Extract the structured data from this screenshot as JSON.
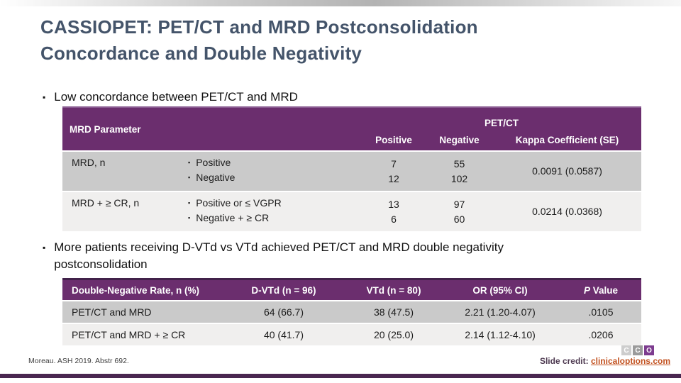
{
  "title": {
    "line1": "CASSIOPET: PET/CT and MRD Postconsolidation",
    "line2": "Concordance and Double Negativity"
  },
  "bullets": {
    "low_concordance": "Low concordance between PET/CT and MRD",
    "double_negativity": "More patients receiving D-VTd vs VTd achieved PET/CT and MRD double negativity postconsolidation"
  },
  "table1": {
    "header": {
      "col_param": "MRD Parameter",
      "group": "PET/CT",
      "sub_positive": "Positive",
      "sub_negative": "Negative",
      "sub_kappa": "Kappa Coefficient (SE)"
    },
    "rows": [
      {
        "param": "MRD, n",
        "sub_items": [
          "Positive",
          "Negative"
        ],
        "positive": [
          "7",
          "12"
        ],
        "negative": [
          "55",
          "102"
        ],
        "kappa": "0.0091 (0.0587)"
      },
      {
        "param": "MRD + ≥ CR, n",
        "sub_items": [
          "Positive or ≤ VGPR",
          "Negative + ≥ CR"
        ],
        "positive": [
          "13",
          "6"
        ],
        "negative": [
          "97",
          "60"
        ],
        "kappa": "0.0214 (0.0368)"
      }
    ]
  },
  "table2": {
    "headers": [
      "Double-Negative Rate, n (%)",
      "D-VTd (n = 96)",
      "VTd (n = 80)",
      "OR (95% CI)",
      "P Value"
    ],
    "rows": [
      [
        "PET/CT and MRD",
        "64 (66.7)",
        "38 (47.5)",
        "2.21 (1.20-4.07)",
        ".0105"
      ],
      [
        "PET/CT and MRD + ≥ CR",
        "40 (41.7)",
        "20 (25.0)",
        "2.14 (1.12-4.10)",
        ".0206"
      ]
    ]
  },
  "footer": {
    "reference": "Moreau. ASH 2019. Abstr 692.",
    "credit_label": "Slide credit: ",
    "credit_link": "clinicaloptions.com",
    "logo_letters": [
      "C",
      "C",
      "O"
    ]
  },
  "colors": {
    "table_header_purple": "#6b2e6e",
    "bottom_bar_purple": "#4a2750",
    "title_slate": "#44546a",
    "row_dark_gray": "#cacaca",
    "row_light_gray": "#f0efee",
    "link_orange": "#c2511f"
  },
  "icons": {
    "bullet": "▪"
  }
}
